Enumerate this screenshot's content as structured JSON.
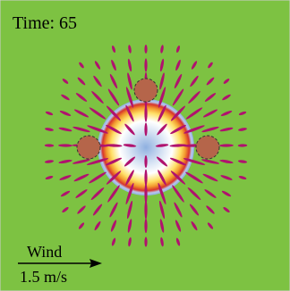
{
  "time_label": "Time: 65",
  "wind": {
    "label": "Wind",
    "speed": "1.5 m/s"
  }
}
